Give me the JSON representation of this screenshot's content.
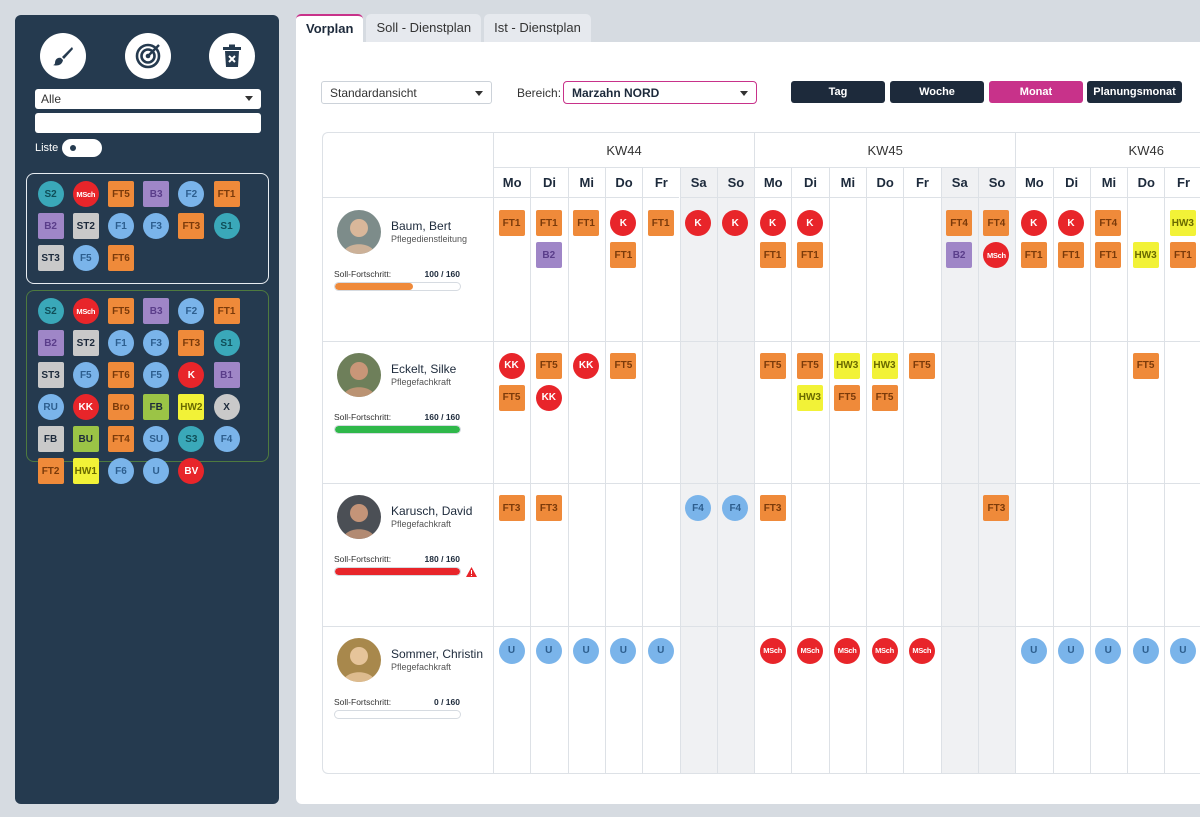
{
  "colors": {
    "FT": "#ef8a3a",
    "K": "#e8252a",
    "B": "#9f86c7",
    "S": "#3aa8b9",
    "F": "#7ab4ea",
    "ST": "#c9c9c9",
    "HW": "#f2f237",
    "FB": "#9bc446",
    "X": "#c9c9c9",
    "SU": "#7ab4ea",
    "U": "#7ab4ea",
    "BV": "#e8252a",
    "accent": "#c8328a",
    "navy": "#1d2a3b",
    "sidebar": "#253a4f"
  },
  "tabs": [
    {
      "label": "Vorplan",
      "active": true
    },
    {
      "label": "Soll - Dienstplan",
      "active": false
    },
    {
      "label": "Ist - Dienstplan",
      "active": false
    }
  ],
  "sidebar": {
    "tools": [
      {
        "name": "brush-icon"
      },
      {
        "name": "target-icon"
      },
      {
        "name": "trash-icon"
      }
    ],
    "filter": "Alle",
    "search_value": "",
    "liste_label": "Liste",
    "palette_recent": [
      {
        "t": "S2",
        "s": "c",
        "c": "S"
      },
      {
        "t": "MSch",
        "s": "c",
        "c": "K"
      },
      {
        "t": "FT5",
        "s": "q",
        "c": "FT"
      },
      {
        "t": "B3",
        "s": "q",
        "c": "B"
      },
      {
        "t": "F2",
        "s": "c",
        "c": "F"
      },
      {
        "t": "FT1",
        "s": "q",
        "c": "FT"
      },
      {
        "t": "B2",
        "s": "q",
        "c": "B"
      },
      {
        "t": "ST2",
        "s": "q",
        "c": "ST"
      },
      {
        "t": "F1",
        "s": "c",
        "c": "F"
      },
      {
        "t": "F3",
        "s": "c",
        "c": "F"
      },
      {
        "t": "FT3",
        "s": "q",
        "c": "FT"
      },
      {
        "t": "S1",
        "s": "c",
        "c": "S"
      },
      {
        "t": "ST3",
        "s": "q",
        "c": "ST"
      },
      {
        "t": "F5",
        "s": "c",
        "c": "F"
      },
      {
        "t": "FT6",
        "s": "q",
        "c": "FT"
      }
    ],
    "palette_all": [
      {
        "t": "S2",
        "s": "c",
        "c": "S"
      },
      {
        "t": "MSch",
        "s": "c",
        "c": "K"
      },
      {
        "t": "FT5",
        "s": "q",
        "c": "FT"
      },
      {
        "t": "B3",
        "s": "q",
        "c": "B"
      },
      {
        "t": "F2",
        "s": "c",
        "c": "F"
      },
      {
        "t": "FT1",
        "s": "q",
        "c": "FT"
      },
      {
        "t": "B2",
        "s": "q",
        "c": "B"
      },
      {
        "t": "ST2",
        "s": "q",
        "c": "ST"
      },
      {
        "t": "F1",
        "s": "c",
        "c": "F"
      },
      {
        "t": "F3",
        "s": "c",
        "c": "F"
      },
      {
        "t": "FT3",
        "s": "q",
        "c": "FT"
      },
      {
        "t": "S1",
        "s": "c",
        "c": "S"
      },
      {
        "t": "ST3",
        "s": "q",
        "c": "ST"
      },
      {
        "t": "F5",
        "s": "c",
        "c": "F"
      },
      {
        "t": "FT6",
        "s": "q",
        "c": "FT"
      },
      {
        "t": "F5",
        "s": "c",
        "c": "F"
      },
      {
        "t": "K",
        "s": "c",
        "c": "K"
      },
      {
        "t": "B1",
        "s": "q",
        "c": "B"
      },
      {
        "t": "RU",
        "s": "c",
        "c": "F"
      },
      {
        "t": "KK",
        "s": "c",
        "c": "K"
      },
      {
        "t": "Bro",
        "s": "q",
        "c": "FT"
      },
      {
        "t": "FB",
        "s": "q",
        "c": "FB"
      },
      {
        "t": "HW2",
        "s": "q",
        "c": "HW"
      },
      {
        "t": "X",
        "s": "c",
        "c": "X"
      },
      {
        "t": "FB",
        "s": "q",
        "c": "ST"
      },
      {
        "t": "BU",
        "s": "q",
        "c": "FB"
      },
      {
        "t": "FT4",
        "s": "q",
        "c": "FT"
      },
      {
        "t": "SU",
        "s": "c",
        "c": "SU"
      },
      {
        "t": "S3",
        "s": "c",
        "c": "S"
      },
      {
        "t": "F4",
        "s": "c",
        "c": "F"
      },
      {
        "t": "FT2",
        "s": "q",
        "c": "FT"
      },
      {
        "t": "HW1",
        "s": "q",
        "c": "HW"
      },
      {
        "t": "F6",
        "s": "c",
        "c": "F"
      },
      {
        "t": "U",
        "s": "c",
        "c": "U"
      },
      {
        "t": "BV",
        "s": "c",
        "c": "BV"
      }
    ]
  },
  "toolbar": {
    "view": "Standardansicht",
    "area_label": "Bereich:",
    "area": "Marzahn NORD",
    "buttons": [
      {
        "label": "Tag",
        "active": false
      },
      {
        "label": "Woche",
        "active": false
      },
      {
        "label": "Monat",
        "active": true
      },
      {
        "label": "Planungsmonat",
        "active": false
      }
    ]
  },
  "weeks": [
    "KW44",
    "KW45",
    "KW46"
  ],
  "days": [
    "Mo",
    "Di",
    "Mi",
    "Do",
    "Fr",
    "Sa",
    "So",
    "Mo",
    "Di",
    "Mi",
    "Do",
    "Fr",
    "Sa",
    "So",
    "Mo",
    "Di",
    "Mi",
    "Do",
    "Fr"
  ],
  "weekend_columns": [
    5,
    6,
    12,
    13
  ],
  "progress_label": "Soll-Fortschritt:",
  "employees": [
    {
      "name": "Baum, Bert",
      "role": "Pflegedienstleitung",
      "progress": "100 / 160",
      "progress_fraction": 0.625,
      "bar": "#ef8a3a",
      "warning": false,
      "shifts": [
        [
          {
            "t": "FT1",
            "s": "q",
            "c": "FT"
          }
        ],
        [
          {
            "t": "FT1",
            "s": "q",
            "c": "FT"
          },
          {
            "t": "B2",
            "s": "q",
            "c": "B"
          }
        ],
        [
          {
            "t": "FT1",
            "s": "q",
            "c": "FT"
          }
        ],
        [
          {
            "t": "K",
            "s": "c",
            "c": "K"
          },
          {
            "t": "FT1",
            "s": "q",
            "c": "FT"
          }
        ],
        [
          {
            "t": "FT1",
            "s": "q",
            "c": "FT"
          }
        ],
        [
          {
            "t": "K",
            "s": "c",
            "c": "K"
          }
        ],
        [
          {
            "t": "K",
            "s": "c",
            "c": "K"
          }
        ],
        [
          {
            "t": "K",
            "s": "c",
            "c": "K"
          },
          {
            "t": "FT1",
            "s": "q",
            "c": "FT"
          }
        ],
        [
          {
            "t": "K",
            "s": "c",
            "c": "K"
          },
          {
            "t": "FT1",
            "s": "q",
            "c": "FT"
          }
        ],
        [],
        [],
        [],
        [
          {
            "t": "FT4",
            "s": "q",
            "c": "FT"
          },
          {
            "t": "B2",
            "s": "q",
            "c": "B"
          }
        ],
        [
          {
            "t": "FT4",
            "s": "q",
            "c": "FT"
          },
          {
            "t": "MSch",
            "s": "c",
            "c": "K"
          }
        ],
        [
          {
            "t": "K",
            "s": "c",
            "c": "K"
          },
          {
            "t": "FT1",
            "s": "q",
            "c": "FT"
          }
        ],
        [
          {
            "t": "K",
            "s": "c",
            "c": "K"
          },
          {
            "t": "FT1",
            "s": "q",
            "c": "FT"
          }
        ],
        [
          {
            "t": "FT4",
            "s": "q",
            "c": "FT"
          },
          {
            "t": "FT1",
            "s": "q",
            "c": "FT"
          }
        ],
        [
          {
            "t": "",
            "s": "n",
            "c": ""
          },
          {
            "t": "HW3",
            "s": "q",
            "c": "HW"
          }
        ],
        [
          {
            "t": "HW3",
            "s": "q",
            "c": "HW"
          },
          {
            "t": "FT1",
            "s": "q",
            "c": "FT"
          }
        ]
      ]
    },
    {
      "name": "Eckelt, Silke",
      "role": "Pflegefachkraft",
      "progress": "160 / 160",
      "progress_fraction": 1.0,
      "bar": "#2fb84a",
      "warning": false,
      "shifts": [
        [
          {
            "t": "KK",
            "s": "c",
            "c": "K"
          },
          {
            "t": "FT5",
            "s": "q",
            "c": "FT"
          }
        ],
        [
          {
            "t": "FT5",
            "s": "q",
            "c": "FT"
          },
          {
            "t": "KK",
            "s": "c",
            "c": "K"
          }
        ],
        [
          {
            "t": "KK",
            "s": "c",
            "c": "K"
          }
        ],
        [
          {
            "t": "FT5",
            "s": "q",
            "c": "FT"
          }
        ],
        [],
        [],
        [],
        [
          {
            "t": "FT5",
            "s": "q",
            "c": "FT"
          }
        ],
        [
          {
            "t": "FT5",
            "s": "q",
            "c": "FT"
          },
          {
            "t": "HW3",
            "s": "q",
            "c": "HW"
          }
        ],
        [
          {
            "t": "HW3",
            "s": "q",
            "c": "HW"
          },
          {
            "t": "FT5",
            "s": "q",
            "c": "FT"
          }
        ],
        [
          {
            "t": "HW3",
            "s": "q",
            "c": "HW"
          },
          {
            "t": "FT5",
            "s": "q",
            "c": "FT"
          }
        ],
        [
          {
            "t": "FT5",
            "s": "q",
            "c": "FT"
          }
        ],
        [],
        [],
        [],
        [],
        [],
        [
          {
            "t": "FT5",
            "s": "q",
            "c": "FT"
          }
        ],
        []
      ]
    },
    {
      "name": "Karusch, David",
      "role": "Pflegefachkraft",
      "progress": "180 / 160",
      "progress_fraction": 1.0,
      "bar": "#e8252a",
      "warning": true,
      "shifts": [
        [
          {
            "t": "FT3",
            "s": "q",
            "c": "FT"
          }
        ],
        [
          {
            "t": "FT3",
            "s": "q",
            "c": "FT"
          }
        ],
        [],
        [],
        [],
        [
          {
            "t": "F4",
            "s": "c",
            "c": "F"
          }
        ],
        [
          {
            "t": "F4",
            "s": "c",
            "c": "F"
          }
        ],
        [
          {
            "t": "FT3",
            "s": "q",
            "c": "FT"
          }
        ],
        [],
        [],
        [],
        [],
        [],
        [
          {
            "t": "FT3",
            "s": "q",
            "c": "FT"
          }
        ],
        [],
        [],
        [],
        [],
        []
      ]
    },
    {
      "name": "Sommer, Christin",
      "role": "Pflegefachkraft",
      "progress": "0 / 160",
      "progress_fraction": 0.0,
      "bar": "#ef8a3a",
      "warning": false,
      "shifts": [
        [
          {
            "t": "U",
            "s": "c",
            "c": "U"
          }
        ],
        [
          {
            "t": "U",
            "s": "c",
            "c": "U"
          }
        ],
        [
          {
            "t": "U",
            "s": "c",
            "c": "U"
          }
        ],
        [
          {
            "t": "U",
            "s": "c",
            "c": "U"
          }
        ],
        [
          {
            "t": "U",
            "s": "c",
            "c": "U"
          }
        ],
        [],
        [],
        [
          {
            "t": "MSch",
            "s": "c",
            "c": "K"
          }
        ],
        [
          {
            "t": "MSch",
            "s": "c",
            "c": "K"
          }
        ],
        [
          {
            "t": "MSch",
            "s": "c",
            "c": "K"
          }
        ],
        [
          {
            "t": "MSch",
            "s": "c",
            "c": "K"
          }
        ],
        [
          {
            "t": "MSch",
            "s": "c",
            "c": "K"
          }
        ],
        [],
        [],
        [
          {
            "t": "U",
            "s": "c",
            "c": "U"
          }
        ],
        [
          {
            "t": "U",
            "s": "c",
            "c": "U"
          }
        ],
        [
          {
            "t": "U",
            "s": "c",
            "c": "U"
          }
        ],
        [
          {
            "t": "U",
            "s": "c",
            "c": "U"
          }
        ],
        [
          {
            "t": "U",
            "s": "c",
            "c": "U"
          }
        ]
      ]
    }
  ]
}
